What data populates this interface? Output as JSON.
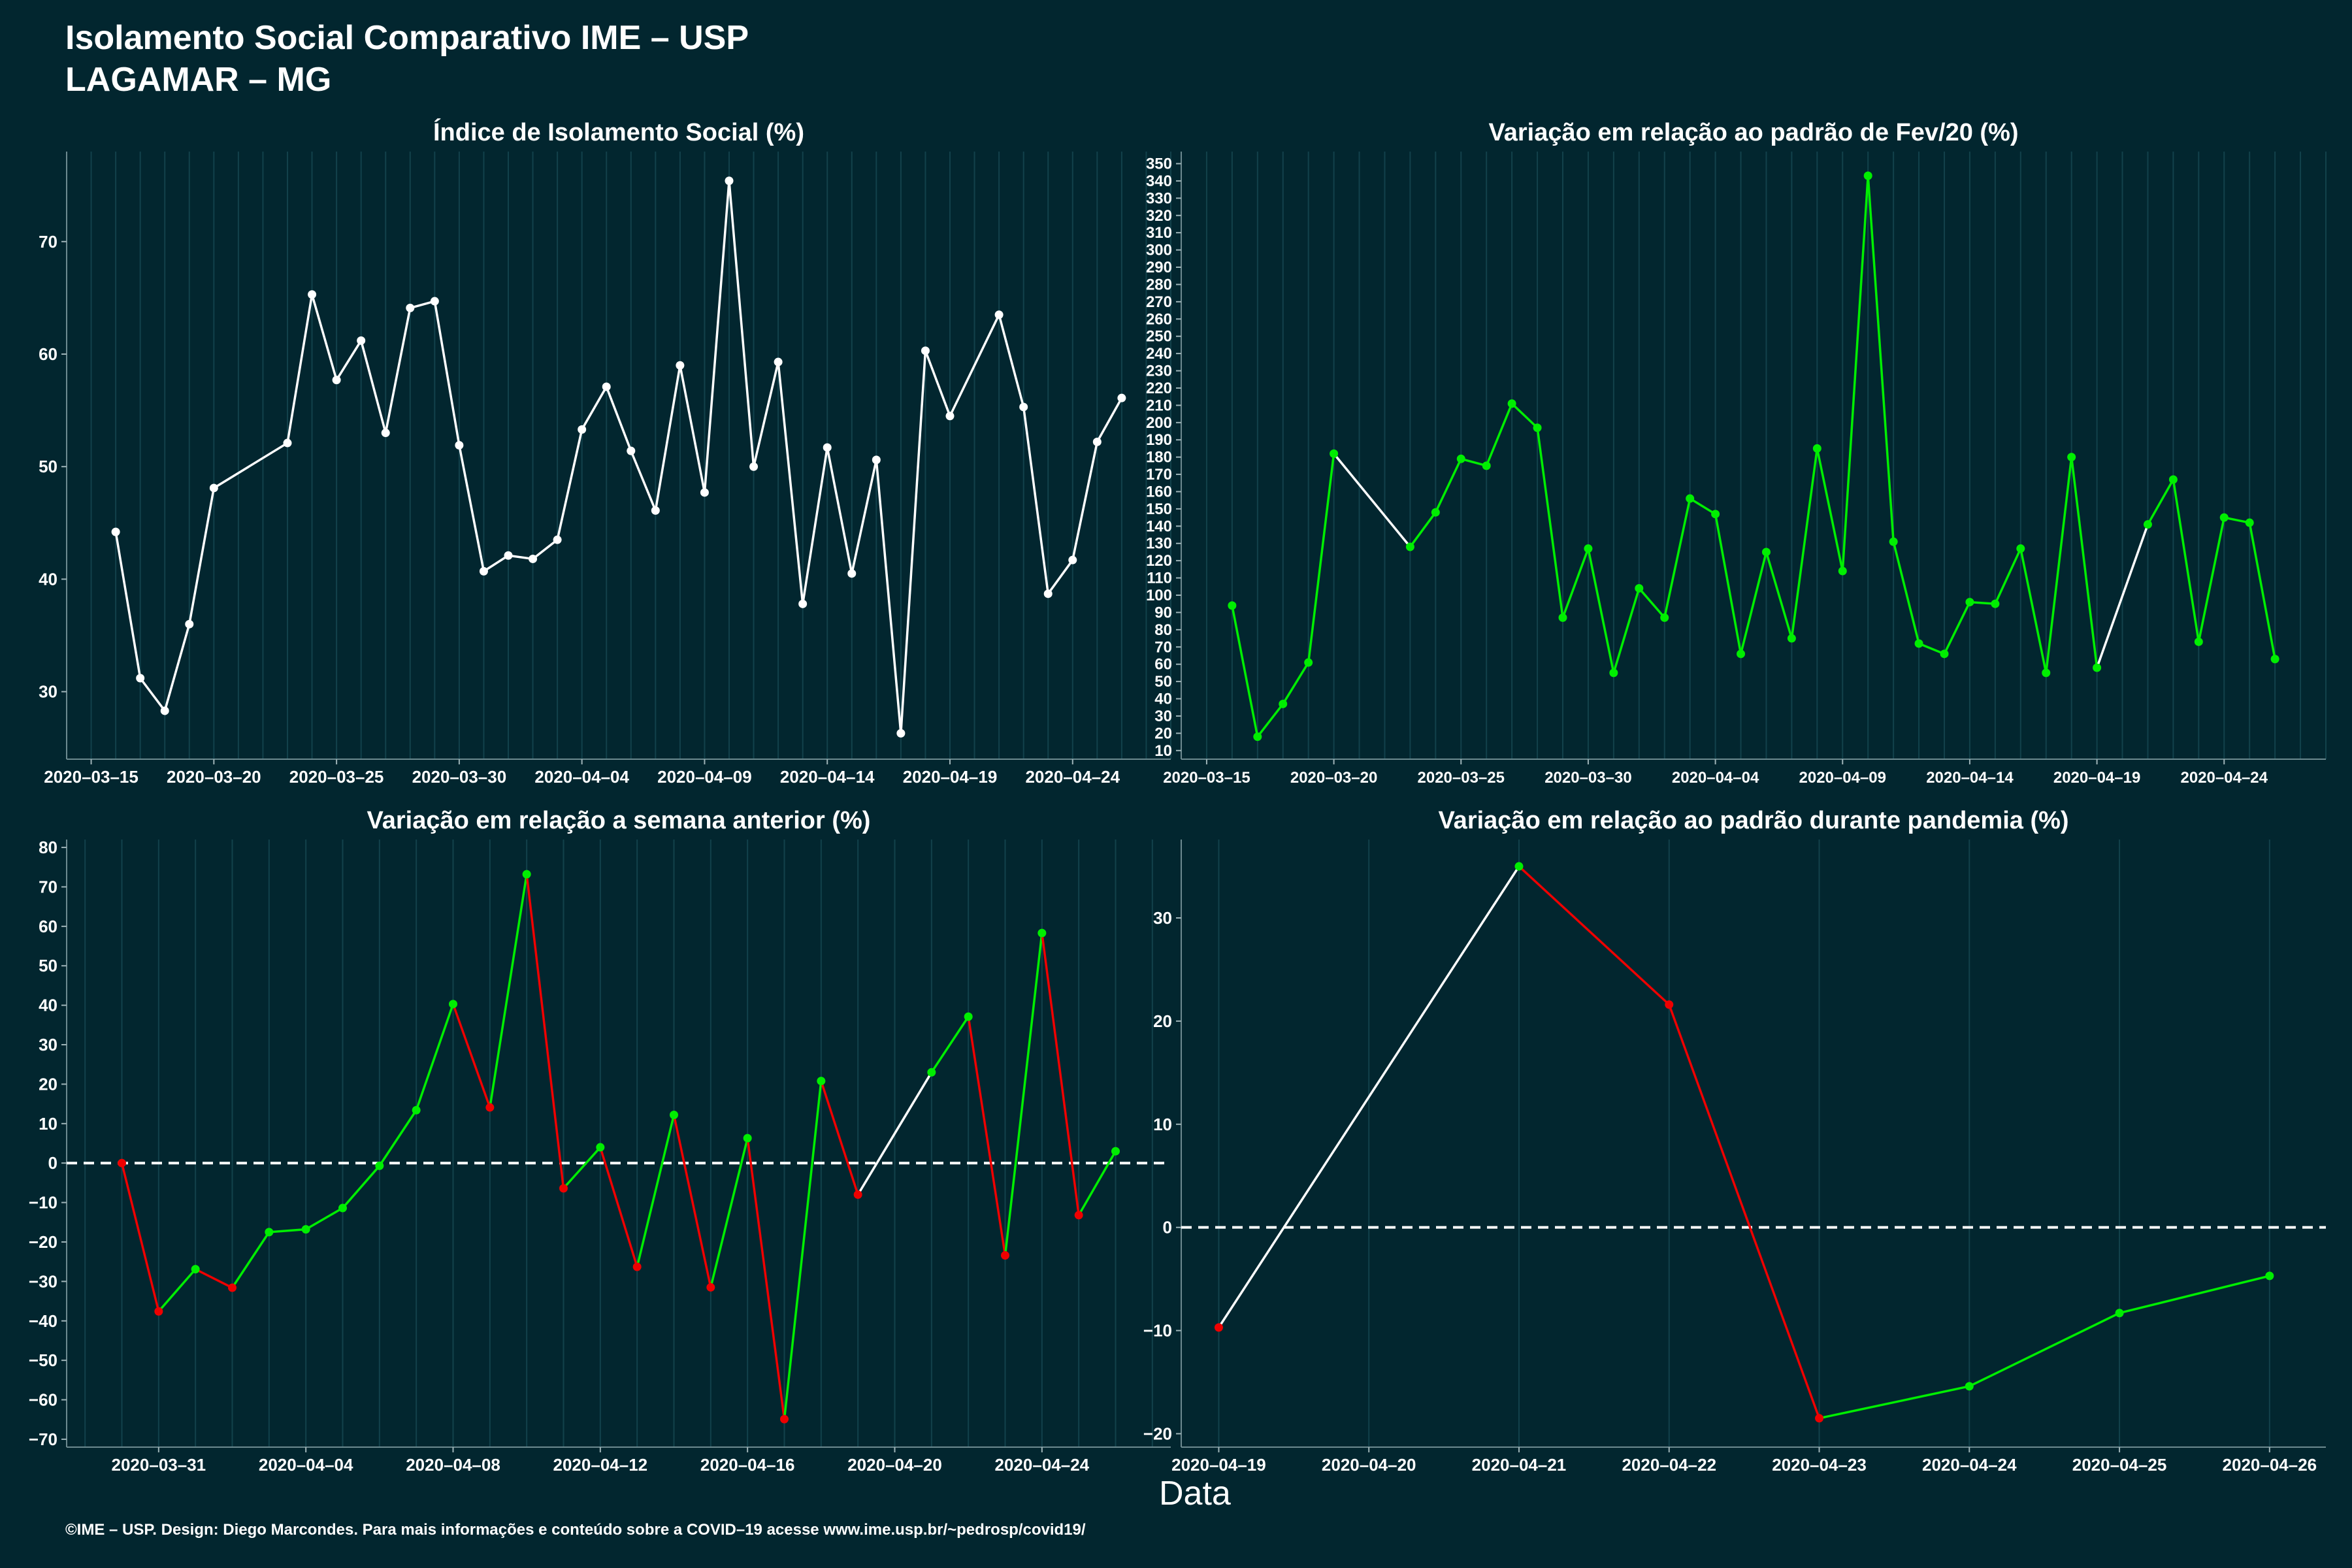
{
  "header": {
    "title_line1": "Isolamento Social Comparativo IME – USP",
    "title_line2": "LAGAMAR – MG"
  },
  "footer": "©IME – USP. Design: Diego Marcondes. Para mais informações e conteúdo sobre a COVID–19 acesse www.ime.usp.br/~pedrosp/covid19/",
  "x_caption": "Data",
  "colors": {
    "background": "#02262f",
    "up": "#00ee00",
    "down": "#ee0000",
    "neutral": "#ffffff"
  },
  "chart_data": [
    {
      "type": "line",
      "title": "Índice de Isolamento Social (%)",
      "x_ticks": [
        "2020–03–15",
        "2020–03–20",
        "2020–03–25",
        "2020–03–30",
        "2020–04–04",
        "2020–04–09",
        "2020–04–14",
        "2020–04–19",
        "2020–04–24"
      ],
      "y_ticks": [
        30,
        40,
        50,
        60,
        70
      ],
      "ylim": [
        24,
        78
      ],
      "xlim": [
        "2020-03-14",
        "2020-04-28"
      ],
      "color_mode": "white",
      "x": [
        "2020-03-16",
        "2020-03-17",
        "2020-03-18",
        "2020-03-19",
        "2020-03-20",
        "2020-03-23",
        "2020-03-24",
        "2020-03-25",
        "2020-03-26",
        "2020-03-27",
        "2020-03-28",
        "2020-03-29",
        "2020-03-30",
        "2020-03-31",
        "2020-04-01",
        "2020-04-02",
        "2020-04-03",
        "2020-04-04",
        "2020-04-05",
        "2020-04-06",
        "2020-04-07",
        "2020-04-08",
        "2020-04-09",
        "2020-04-10",
        "2020-04-11",
        "2020-04-12",
        "2020-04-13",
        "2020-04-14",
        "2020-04-15",
        "2020-04-16",
        "2020-04-17",
        "2020-04-18",
        "2020-04-19",
        "2020-04-21",
        "2020-04-22",
        "2020-04-23",
        "2020-04-24",
        "2020-04-25",
        "2020-04-26"
      ],
      "y": [
        44.2,
        31.2,
        28.3,
        36.0,
        48.1,
        52.1,
        65.3,
        57.7,
        61.2,
        53.0,
        64.1,
        64.7,
        51.9,
        40.7,
        42.1,
        41.8,
        43.5,
        53.3,
        57.1,
        51.4,
        46.1,
        59.0,
        47.7,
        75.4,
        50.0,
        59.3,
        37.8,
        51.7,
        40.5,
        50.6,
        26.3,
        60.3,
        54.5,
        63.5,
        55.3,
        38.7,
        41.7,
        52.2,
        56.1
      ]
    },
    {
      "type": "line",
      "title": "Variação em relação ao padrão de Fev/20 (%)",
      "x_ticks": [
        "2020–03–15",
        "2020–03–20",
        "2020–03–25",
        "2020–03–30",
        "2020–04–04",
        "2020–04–09",
        "2020–04–14",
        "2020–04–19",
        "2020–04–24"
      ],
      "y_ticks": [
        10,
        20,
        30,
        40,
        50,
        60,
        70,
        80,
        90,
        100,
        110,
        120,
        130,
        140,
        150,
        160,
        170,
        180,
        190,
        200,
        210,
        220,
        230,
        240,
        250,
        260,
        270,
        280,
        290,
        300,
        310,
        320,
        330,
        340,
        350
      ],
      "ylim": [
        5,
        357
      ],
      "xlim": [
        "2020-03-14",
        "2020-04-28"
      ],
      "color_mode": "green-gap",
      "x": [
        "2020-03-16",
        "2020-03-17",
        "2020-03-18",
        "2020-03-19",
        "2020-03-20",
        "2020-03-23",
        "2020-03-24",
        "2020-03-25",
        "2020-03-26",
        "2020-03-27",
        "2020-03-28",
        "2020-03-29",
        "2020-03-30",
        "2020-03-31",
        "2020-04-01",
        "2020-04-02",
        "2020-04-03",
        "2020-04-04",
        "2020-04-05",
        "2020-04-06",
        "2020-04-07",
        "2020-04-08",
        "2020-04-09",
        "2020-04-10",
        "2020-04-11",
        "2020-04-12",
        "2020-04-13",
        "2020-04-14",
        "2020-04-15",
        "2020-04-16",
        "2020-04-17",
        "2020-04-18",
        "2020-04-19",
        "2020-04-21",
        "2020-04-22",
        "2020-04-23",
        "2020-04-24",
        "2020-04-25",
        "2020-04-26"
      ],
      "y": [
        94,
        18,
        37,
        61,
        182,
        128,
        148,
        179,
        175,
        211,
        197,
        87,
        127,
        55,
        104,
        87,
        156,
        147,
        66,
        125,
        75,
        185,
        114,
        343,
        131,
        72,
        66,
        96,
        95,
        127,
        55,
        180,
        58,
        141,
        167,
        73,
        145,
        142,
        63
      ]
    },
    {
      "type": "line",
      "title": "Variação em relação a semana anterior (%)",
      "x_ticks": [
        "2020–03–31",
        "2020–04–04",
        "2020–04–08",
        "2020–04–12",
        "2020–04–16",
        "2020–04–20",
        "2020–04–24"
      ],
      "y_ticks": [
        -70,
        -60,
        -50,
        -40,
        -30,
        -20,
        -10,
        0,
        10,
        20,
        30,
        40,
        50,
        60,
        70,
        80
      ],
      "ylim": [
        -72,
        82
      ],
      "xlim": [
        "2020-03-28T12:00",
        "2020-04-27T12:00"
      ],
      "color_mode": "updown",
      "zero_line": true,
      "x": [
        "2020-03-30",
        "2020-03-31",
        "2020-04-01",
        "2020-04-02",
        "2020-04-03",
        "2020-04-04",
        "2020-04-05",
        "2020-04-06",
        "2020-04-07",
        "2020-04-08",
        "2020-04-09",
        "2020-04-10",
        "2020-04-11",
        "2020-04-12",
        "2020-04-13",
        "2020-04-14",
        "2020-04-15",
        "2020-04-16",
        "2020-04-17",
        "2020-04-18",
        "2020-04-19",
        "2020-04-21",
        "2020-04-22",
        "2020-04-23",
        "2020-04-24",
        "2020-04-25",
        "2020-04-26"
      ],
      "y": [
        0,
        -37.6,
        -26.9,
        -31.6,
        -17.5,
        -16.8,
        -11.4,
        -0.7,
        13.4,
        40.3,
        14.1,
        73.2,
        -6.4,
        4.0,
        -26.3,
        12.2,
        -31.5,
        6.3,
        -64.9,
        20.8,
        -8.0,
        23.0,
        37.1,
        -23.4,
        58.3,
        -13.2,
        3.0
      ]
    },
    {
      "type": "line",
      "title": "Variação em relação ao padrão durante pandemia (%)",
      "x_ticks": [
        "2020–04–19",
        "2020–04–20",
        "2020–04–21",
        "2020–04–22",
        "2020–04–23",
        "2020–04–24",
        "2020–04–25",
        "2020–04–26"
      ],
      "y_ticks": [
        -20,
        -10,
        0,
        10,
        20,
        30
      ],
      "ylim": [
        -21.3,
        37.6
      ],
      "xlim": [
        "2020-04-18T18:00",
        "2020-04-26T09:00"
      ],
      "color_mode": "updown",
      "zero_line": true,
      "x": [
        "2020-04-19",
        "2020-04-21",
        "2020-04-22",
        "2020-04-23",
        "2020-04-24",
        "2020-04-25",
        "2020-04-26"
      ],
      "y": [
        -9.7,
        35.0,
        21.6,
        -18.5,
        -15.4,
        -8.3,
        -4.7
      ]
    }
  ]
}
